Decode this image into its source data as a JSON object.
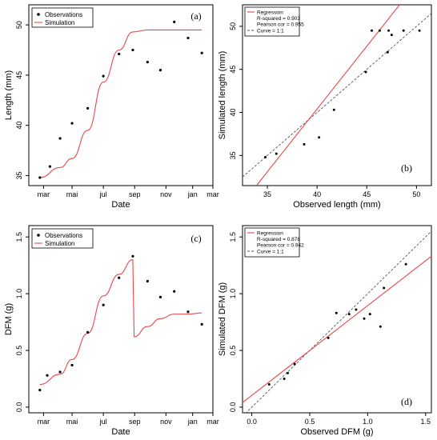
{
  "chart_data": [
    {
      "type": "scatter",
      "panel": "(a)",
      "xlabel": "Date",
      "ylabel": "Length (mm)",
      "x_ticks": [
        "mar",
        "mai",
        "jul",
        "sep",
        "nov",
        "jan",
        "mar"
      ],
      "y_ticks": [
        "35",
        "40",
        "45",
        "50"
      ],
      "ylim": [
        34,
        52
      ],
      "legend": [
        "Observations",
        "Simulation"
      ],
      "legend_position": "top-left",
      "observations": {
        "name": "Observations",
        "points": [
          {
            "x": "mar",
            "y": 34.8
          },
          {
            "x": "mar-mai",
            "y": 35.9
          },
          {
            "x": "apr",
            "y": 38.7
          },
          {
            "x": "mai",
            "y": 40.2
          },
          {
            "x": "jun",
            "y": 41.7
          },
          {
            "x": "jul",
            "y": 44.9
          },
          {
            "x": "aug",
            "y": 47.1
          },
          {
            "x": "sep",
            "y": 47.5
          },
          {
            "x": "oct",
            "y": 46.3
          },
          {
            "x": "nov",
            "y": 45.5
          },
          {
            "x": "dec",
            "y": 50.3
          },
          {
            "x": "jan",
            "y": 48.7
          },
          {
            "x": "feb",
            "y": 47.2
          }
        ]
      },
      "simulation": {
        "name": "Simulation",
        "points": [
          {
            "x": "mar",
            "y": 34.8
          },
          {
            "x": "apr",
            "y": 35.8
          },
          {
            "x": "mai",
            "y": 36.7
          },
          {
            "x": "jun",
            "y": 39.5
          },
          {
            "x": "jul",
            "y": 44.3
          },
          {
            "x": "aug",
            "y": 47.5
          },
          {
            "x": "sep",
            "y": 49.3
          },
          {
            "x": "oct",
            "y": 49.5
          },
          {
            "x": "nov",
            "y": 49.5
          },
          {
            "x": "dec",
            "y": 49.5
          },
          {
            "x": "jan",
            "y": 49.5
          },
          {
            "x": "feb",
            "y": 49.5
          }
        ]
      }
    },
    {
      "type": "scatter",
      "panel": "(b)",
      "xlabel": "Observed length (mm)",
      "ylabel": "Simulated length (mm)",
      "xlim": [
        32.5,
        51.5
      ],
      "ylim": [
        31.5,
        52.5
      ],
      "x_ticks": [
        35,
        40,
        45,
        50
      ],
      "y_ticks": [
        35,
        40,
        45,
        50
      ],
      "legend": [
        "Regression",
        "R-squared = 0.903",
        "Pearson cor = 0.955",
        "Curve = 1:1"
      ],
      "legend_position": "top-left",
      "points": [
        {
          "x": 34.8,
          "y": 34.8
        },
        {
          "x": 35.9,
          "y": 35.2
        },
        {
          "x": 38.7,
          "y": 36.3
        },
        {
          "x": 40.2,
          "y": 37.1
        },
        {
          "x": 41.7,
          "y": 40.3
        },
        {
          "x": 44.9,
          "y": 44.7
        },
        {
          "x": 45.5,
          "y": 49.5
        },
        {
          "x": 46.3,
          "y": 49.5
        },
        {
          "x": 47.1,
          "y": 47.0
        },
        {
          "x": 47.2,
          "y": 49.5
        },
        {
          "x": 47.5,
          "y": 49.0
        },
        {
          "x": 48.7,
          "y": 49.5
        },
        {
          "x": 50.3,
          "y": 49.5
        }
      ],
      "regression_line": {
        "x": [
          33.9,
          48.3
        ],
        "y": [
          31.5,
          52.5
        ]
      },
      "identity_line": {
        "x": [
          32.5,
          51.5
        ],
        "y": [
          32.5,
          51.5
        ]
      }
    },
    {
      "type": "scatter",
      "panel": "(c)",
      "xlabel": "Date",
      "ylabel": "DFM (g)",
      "x_ticks": [
        "mar",
        "mai",
        "jul",
        "sep",
        "nov",
        "jan",
        "mar"
      ],
      "y_ticks": [
        "0.0",
        "0.5",
        "1.0",
        "1.5"
      ],
      "ylim": [
        -0.05,
        1.6
      ],
      "legend": [
        "Observations",
        "Simulation"
      ],
      "legend_position": "top-left",
      "observations": {
        "name": "Observations",
        "points": [
          {
            "x": "mar",
            "y": 0.15
          },
          {
            "x": "mar-apr",
            "y": 0.28
          },
          {
            "x": "apr",
            "y": 0.31
          },
          {
            "x": "mai",
            "y": 0.37
          },
          {
            "x": "jun",
            "y": 0.66
          },
          {
            "x": "jul",
            "y": 0.9
          },
          {
            "x": "aug",
            "y": 1.14
          },
          {
            "x": "sep",
            "y": 1.33
          },
          {
            "x": "oct",
            "y": 1.11
          },
          {
            "x": "nov",
            "y": 0.97
          },
          {
            "x": "dec",
            "y": 1.02
          },
          {
            "x": "jan",
            "y": 0.84
          },
          {
            "x": "feb",
            "y": 0.73
          }
        ]
      },
      "simulation": {
        "name": "Simulation",
        "points": [
          {
            "x": "mar",
            "y": 0.2
          },
          {
            "x": "apr",
            "y": 0.29
          },
          {
            "x": "mai",
            "y": 0.42
          },
          {
            "x": "jun",
            "y": 0.65
          },
          {
            "x": "jul",
            "y": 0.98
          },
          {
            "x": "aug",
            "y": 1.17
          },
          {
            "x": "sep",
            "y": 1.3
          },
          {
            "x": "sep-drop",
            "y": 0.62
          },
          {
            "x": "oct",
            "y": 0.71
          },
          {
            "x": "nov",
            "y": 0.78
          },
          {
            "x": "dec",
            "y": 0.82
          },
          {
            "x": "jan",
            "y": 0.82
          },
          {
            "x": "feb",
            "y": 0.83
          }
        ]
      }
    },
    {
      "type": "scatter",
      "panel": "(d)",
      "xlabel": "Observed DFM (g)",
      "ylabel": "Simulated DFM (g)",
      "xlim": [
        -0.08,
        1.55
      ],
      "ylim": [
        -0.05,
        1.6
      ],
      "x_ticks": [
        "0.0",
        "0.5",
        "1.0",
        "1.5"
      ],
      "y_ticks": [
        "0.0",
        "0.5",
        "1.0",
        "1.5"
      ],
      "legend": [
        "Regression",
        "R-squared = 0.878",
        "Pearson cor = 0.942",
        "Curve = 1:1"
      ],
      "legend_position": "top-left",
      "points": [
        {
          "x": 0.15,
          "y": 0.2
        },
        {
          "x": 0.28,
          "y": 0.25
        },
        {
          "x": 0.31,
          "y": 0.3
        },
        {
          "x": 0.37,
          "y": 0.38
        },
        {
          "x": 0.66,
          "y": 0.61
        },
        {
          "x": 0.73,
          "y": 0.83
        },
        {
          "x": 0.84,
          "y": 0.82
        },
        {
          "x": 0.9,
          "y": 0.86
        },
        {
          "x": 0.97,
          "y": 0.78
        },
        {
          "x": 1.02,
          "y": 0.82
        },
        {
          "x": 1.11,
          "y": 0.71
        },
        {
          "x": 1.14,
          "y": 1.05
        },
        {
          "x": 1.33,
          "y": 1.26
        }
      ],
      "regression_line": {
        "x": [
          -0.08,
          1.55
        ],
        "y": [
          0.04,
          1.33
        ]
      },
      "identity_line": {
        "x": [
          -0.08,
          1.55
        ],
        "y": [
          -0.08,
          1.55
        ]
      }
    }
  ],
  "colors": {
    "simulation": "#e8474a",
    "regression": "#e8474a",
    "identity": "#555555",
    "points": "#000000"
  }
}
